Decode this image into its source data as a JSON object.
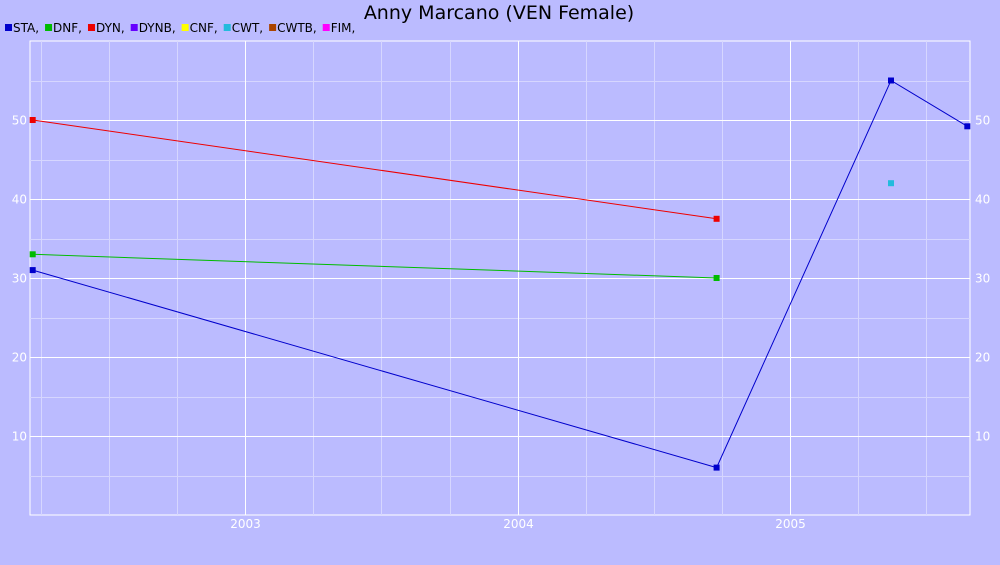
{
  "chart_data": {
    "type": "line",
    "title": "Anny Marcano (VEN Female)",
    "xlabel": "",
    "ylabel": "",
    "xlim": [
      2002.21,
      2005.66
    ],
    "ylim": [
      0,
      60
    ],
    "x_ticks": [
      {
        "value": 2003,
        "label": "2003"
      },
      {
        "value": 2004,
        "label": "2004"
      },
      {
        "value": 2005,
        "label": "2005"
      }
    ],
    "y_ticks": [
      {
        "value": 10,
        "label": "10"
      },
      {
        "value": 20,
        "label": "20"
      },
      {
        "value": 30,
        "label": "30"
      },
      {
        "value": 40,
        "label": "40"
      },
      {
        "value": 50,
        "label": "50"
      }
    ],
    "grid": true,
    "legend_position": "top-left",
    "legend": [
      {
        "label": "STA,",
        "color": "#0000cc"
      },
      {
        "label": "DNF,",
        "color": "#00bb00"
      },
      {
        "label": "DYN,",
        "color": "#ee0000"
      },
      {
        "label": "DYNB,",
        "color": "#6600ff"
      },
      {
        "label": "CNF,",
        "color": "#ffff00"
      },
      {
        "label": "CWT,",
        "color": "#22bbdd"
      },
      {
        "label": "CWTB,",
        "color": "#aa4400"
      },
      {
        "label": "FIM,",
        "color": "#ff00ff"
      }
    ],
    "series": [
      {
        "name": "STA",
        "color": "#0000cc",
        "points": [
          [
            2002.22,
            31
          ],
          [
            2004.73,
            6
          ],
          [
            2005.37,
            55
          ],
          [
            2005.65,
            49.2
          ]
        ]
      },
      {
        "name": "DNF",
        "color": "#00bb00",
        "points": [
          [
            2002.22,
            33
          ],
          [
            2004.73,
            30
          ]
        ]
      },
      {
        "name": "DYN",
        "color": "#ee0000",
        "points": [
          [
            2002.22,
            50
          ],
          [
            2004.73,
            37.5
          ]
        ]
      },
      {
        "name": "CWT",
        "color": "#22bbdd",
        "points": [
          [
            2005.37,
            42
          ]
        ]
      }
    ]
  }
}
